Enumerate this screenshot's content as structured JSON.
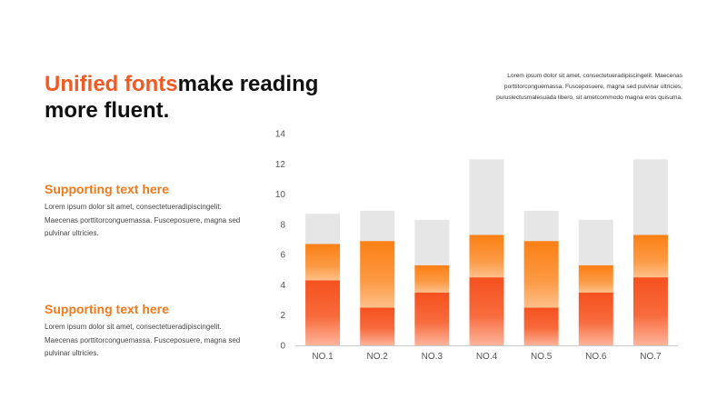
{
  "headline": {
    "accent": "Unified fonts",
    "rest": "make reading more fluent."
  },
  "top_body": "Lorem ipsum dolor sit amet, consectetueradipiscingelit. Maecenas porttitorconguemassa. Fusceposuere, magna sed pulvinar ultricies, puruslectusmalesuada libero, sit ametcommodo magna eros quisuma.",
  "section1": {
    "title": "Supporting text here",
    "body": "Lorem ipsum dolor sit amet, consectetueradipiscingelit. Maecenas porttitorconguemassa. Fusceposuere, magna sed pulvinar ultricies."
  },
  "section2": {
    "title": "Supporting text here",
    "body": "Lorem ipsum dolor sit amet, consectetueradipiscingelit. Maecenas porttitorconguemassa. Fusceposuere, magna sed pulvinar ultricies."
  },
  "colors": {
    "accent_red": "#f05a24",
    "accent_orange": "#f07a1e",
    "bar_bottom": "#f5511e",
    "bar_middle": "#fb8a1e",
    "bar_top": "#e6e6e6",
    "axis": "#cccccc"
  },
  "chart_data": {
    "type": "bar",
    "stacked": true,
    "categories": [
      "NO.1",
      "NO.2",
      "NO.3",
      "NO.4",
      "NO.5",
      "NO.6",
      "NO.7"
    ],
    "series": [
      {
        "values": [
          4.3,
          2.5,
          3.5,
          4.5,
          2.5,
          3.5,
          4.5
        ]
      },
      {
        "values": [
          2.4,
          4.4,
          1.8,
          2.8,
          4.4,
          1.8,
          2.8
        ]
      },
      {
        "values": [
          2.0,
          2.0,
          3.0,
          5.0,
          2.0,
          3.0,
          5.0
        ]
      }
    ],
    "ylim": [
      0,
      14
    ],
    "yticks": [
      0,
      2,
      4,
      6,
      8,
      10,
      12,
      14
    ],
    "grid": false,
    "legend": "none"
  }
}
